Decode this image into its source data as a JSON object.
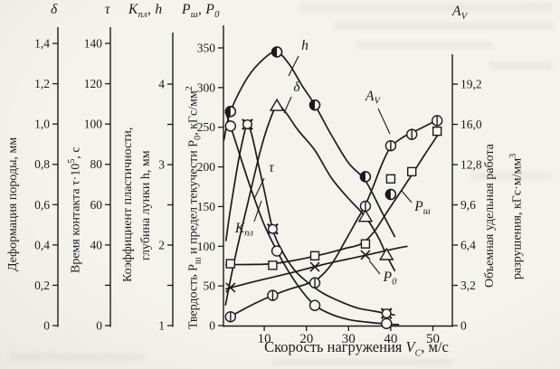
{
  "figure": {
    "kind": "scanned-book-figure",
    "ink_color": "#1b1b1b",
    "paper_color": "#f4f3ee"
  },
  "headers": {
    "delta": "δ",
    "tau": "τ",
    "k": {
      "base": "К",
      "sub": "пл",
      "sep": ", ",
      "h": "h"
    },
    "p": {
      "base1": "Р",
      "sub1": "ш",
      "sep": ", ",
      "base2": "Р",
      "sub2": "0"
    },
    "av": {
      "base": "А",
      "sub": "V"
    }
  },
  "axis_titles": {
    "delta": "Деформация породы, мм",
    "tau": {
      "pre": "Время контакта τ·10",
      "sup": "5",
      "post": ", с"
    },
    "hk": {
      "line1": "Коэффициент пластичности,",
      "line2": "глубина лунки h, мм"
    },
    "p": {
      "pre": "Твердость Р",
      "sub1": "ш",
      "mid": " и предел текучести Р",
      "sub2": "0",
      "post": ", кГс/мм",
      "sup": "2"
    },
    "av": {
      "line1": "Объемная удельная работа",
      "line2_pre": "разрушения, кГс·м/мм",
      "sup": "3"
    }
  },
  "x_title": {
    "pre": "Скорость нагружения ",
    "var": "V",
    "sub": "С",
    "post": ", м/с"
  },
  "chart_data": {
    "type": "line",
    "x_axis": {
      "label": "Скорость нагружения V_С, м/с",
      "unit": "м/с",
      "range": [
        0,
        55
      ],
      "tick_values": [
        10,
        20,
        30,
        40,
        50
      ],
      "tick_labels": [
        "10",
        "20",
        "30",
        "40",
        "50"
      ]
    },
    "y_axes": [
      {
        "id": "delta",
        "symbol": "δ",
        "title": "Деформация породы, мм",
        "range": [
          0,
          1.4
        ],
        "tick_labels": [
          "0",
          "0,2",
          "0,4",
          "0,6",
          "0,8",
          "1,0",
          "1,2",
          "1,4"
        ]
      },
      {
        "id": "tau",
        "symbol": "τ",
        "title": "Время контакта τ·10⁵, с",
        "range": [
          0,
          140
        ],
        "tick_labels": [
          "0",
          "",
          "40",
          "60",
          "80",
          "100",
          "120",
          "140"
        ]
      },
      {
        "id": "hk",
        "symbol": "К_пл, h",
        "title": "Коэффициент пластичности, глубина лунки h, мм",
        "range": [
          1,
          4
        ],
        "tick_labels": [
          "1",
          "",
          "2",
          "",
          "3",
          "",
          "4"
        ]
      },
      {
        "id": "p",
        "symbol": "Р_ш, Р_0",
        "title": "Твердость Р_ш и предел текучести Р_0, кГс/мм²",
        "range": [
          0,
          350
        ],
        "tick_labels": [
          "0",
          "50",
          "100",
          "150",
          "200",
          "250",
          "300",
          "350"
        ]
      },
      {
        "id": "av",
        "symbol": "А_V",
        "title": "Объемная удельная работа разрушения, кГс·м/мм³",
        "range": [
          0,
          19.2
        ],
        "tick_labels": [
          "0",
          "3,2",
          "6,4",
          "9,6",
          "12,8",
          "16,0",
          "19,2"
        ],
        "position": "right"
      }
    ],
    "series": [
      {
        "id": "h",
        "label": "h",
        "label_base": "h",
        "label_sub": "",
        "axis": "hk",
        "marker": "half-filled-circle",
        "points": [
          [
            2,
            3.66
          ],
          [
            13,
            4.4
          ],
          [
            22,
            3.74
          ],
          [
            34,
            2.85
          ],
          [
            40,
            2.63
          ]
        ],
        "curve": [
          [
            0.4,
            3.3
          ],
          [
            2,
            3.66
          ],
          [
            6,
            4.08
          ],
          [
            10,
            4.32
          ],
          [
            13,
            4.4
          ],
          [
            16,
            4.24
          ],
          [
            19,
            3.98
          ],
          [
            22,
            3.74
          ],
          [
            26,
            3.36
          ],
          [
            30,
            3.02
          ],
          [
            34,
            2.8
          ],
          [
            38,
            2.4
          ],
          [
            41,
            2.1
          ]
        ]
      },
      {
        "id": "delta",
        "label": "δ",
        "label_base": "δ",
        "label_sub": "",
        "axis": "delta",
        "marker": "triangle",
        "points": [
          [
            13,
            1.09
          ],
          [
            34,
            0.54
          ],
          [
            39,
            0.35
          ]
        ],
        "curve": [
          [
            0.8,
            0.1
          ],
          [
            3,
            0.33
          ],
          [
            6,
            0.6
          ],
          [
            9,
            0.86
          ],
          [
            11,
            1.0
          ],
          [
            13,
            1.09
          ],
          [
            15,
            1.06
          ],
          [
            18,
            0.97
          ],
          [
            22,
            0.87
          ],
          [
            26,
            0.73
          ],
          [
            30,
            0.63
          ],
          [
            34,
            0.54
          ],
          [
            37,
            0.44
          ],
          [
            39,
            0.35
          ],
          [
            41,
            0.27
          ]
        ]
      },
      {
        "id": "tau",
        "label": "τ",
        "label_base": "τ",
        "label_sub": "",
        "axis": "tau",
        "marker": "open-circle",
        "points": [
          [
            2,
            99
          ],
          [
            13,
            37
          ],
          [
            22,
            10
          ],
          [
            39,
            1
          ]
        ],
        "curve": [
          [
            0.8,
            106
          ],
          [
            2,
            99
          ],
          [
            4,
            86
          ],
          [
            6,
            73
          ],
          [
            8,
            61
          ],
          [
            10,
            50
          ],
          [
            13,
            37
          ],
          [
            16,
            26
          ],
          [
            19,
            17
          ],
          [
            22,
            10
          ],
          [
            26,
            5.5
          ],
          [
            30,
            3
          ],
          [
            34,
            1.8
          ],
          [
            39,
            0.8
          ],
          [
            42,
            0.5
          ]
        ]
      },
      {
        "id": "kpl",
        "label": "К_пл",
        "label_base": "К",
        "label_sub": "пл",
        "axis": "hk",
        "marker": "circle-spokes",
        "points": [
          [
            6,
            3.5
          ],
          [
            12,
            2.2
          ],
          [
            39,
            1.15
          ]
        ],
        "curve": [
          [
            0.9,
            2.05
          ],
          [
            2,
            2.45
          ],
          [
            4,
            3.08
          ],
          [
            5.5,
            3.44
          ],
          [
            6,
            3.5
          ],
          [
            7,
            3.38
          ],
          [
            8.5,
            3.03
          ],
          [
            10,
            2.68
          ],
          [
            12,
            2.2
          ],
          [
            14,
            1.95
          ],
          [
            17,
            1.7
          ],
          [
            20,
            1.55
          ],
          [
            24,
            1.4
          ],
          [
            28,
            1.3
          ],
          [
            32,
            1.22
          ],
          [
            36,
            1.18
          ],
          [
            39,
            1.15
          ],
          [
            41,
            1.13
          ]
        ]
      },
      {
        "id": "psh",
        "label": "Р_ш",
        "label_base": "Р",
        "label_sub": "ш",
        "axis": "p",
        "marker": "square",
        "points": [
          [
            2,
            78
          ],
          [
            12,
            76
          ],
          [
            22,
            88
          ],
          [
            34,
            103
          ],
          [
            40,
            185
          ],
          [
            45,
            194
          ],
          [
            51,
            245
          ]
        ],
        "curve": [
          [
            0.8,
            77
          ],
          [
            6,
            77
          ],
          [
            12,
            78
          ],
          [
            18,
            83
          ],
          [
            24,
            90
          ],
          [
            29,
            97
          ],
          [
            33,
            103
          ],
          [
            36,
            118
          ],
          [
            39,
            142
          ],
          [
            42,
            166
          ],
          [
            45,
            190
          ],
          [
            48,
            215
          ],
          [
            51.5,
            243
          ]
        ]
      },
      {
        "id": "p0",
        "label": "Р_0",
        "label_base": "Р",
        "label_sub": "0",
        "axis": "p",
        "marker": "x-cross",
        "points": [
          [
            2,
            48
          ],
          [
            22,
            74
          ],
          [
            34,
            89
          ]
        ],
        "curve": [
          [
            0.8,
            46
          ],
          [
            8,
            56
          ],
          [
            16,
            66
          ],
          [
            24,
            77
          ],
          [
            30,
            84
          ],
          [
            36,
            91
          ],
          [
            41,
            97
          ],
          [
            44,
            100
          ]
        ]
      },
      {
        "id": "av",
        "label": "А_V",
        "label_base": "А",
        "label_sub": "V",
        "axis": "av",
        "marker": "circle-vline",
        "points": [
          [
            2,
            0.7
          ],
          [
            12,
            2.4
          ],
          [
            22,
            3.4
          ],
          [
            34,
            9.5
          ],
          [
            40,
            14.3
          ],
          [
            45,
            15.2
          ],
          [
            51,
            16.3
          ]
        ],
        "curve": [
          [
            0.8,
            0.5
          ],
          [
            4,
            1.1
          ],
          [
            8,
            1.8
          ],
          [
            12,
            2.4
          ],
          [
            16,
            2.9
          ],
          [
            20,
            3.3
          ],
          [
            23,
            3.8
          ],
          [
            26,
            4.9
          ],
          [
            29,
            6.6
          ],
          [
            32,
            8.4
          ],
          [
            34,
            9.6
          ],
          [
            36,
            11.2
          ],
          [
            38,
            12.9
          ],
          [
            40,
            14.2
          ],
          [
            43,
            15.0
          ],
          [
            46,
            15.5
          ],
          [
            49,
            16.0
          ],
          [
            51.5,
            16.4
          ]
        ]
      }
    ],
    "legend_position": "labels-on-curves",
    "grid": false
  }
}
